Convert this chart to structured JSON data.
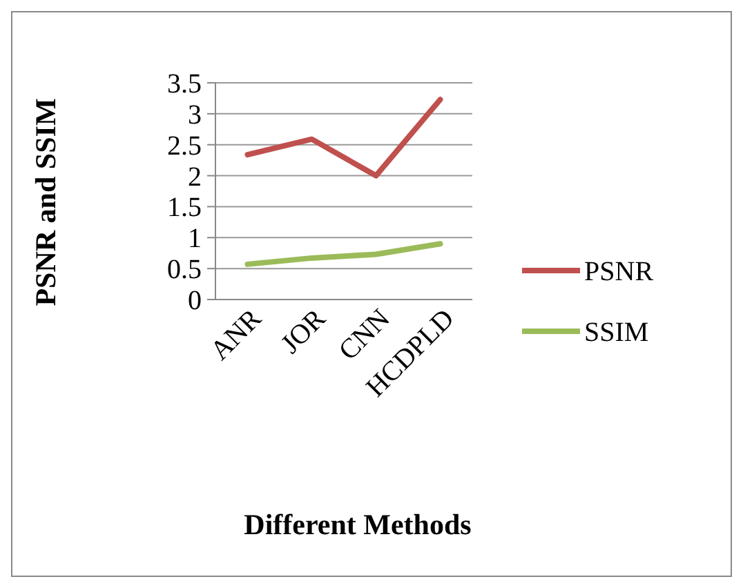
{
  "chart_data": {
    "type": "line",
    "xlabel": "Different Methods",
    "ylabel": "PSNR and SSIM",
    "categories": [
      "ANR",
      "JOR",
      "CNN",
      "HCDPLD"
    ],
    "series": [
      {
        "name": "PSNR",
        "color": "#c0504d",
        "values": [
          2.34,
          2.59,
          2.0,
          3.23
        ]
      },
      {
        "name": "SSIM",
        "color": "#9bbb59",
        "values": [
          0.57,
          0.67,
          0.73,
          0.9
        ]
      }
    ],
    "ylim": [
      0,
      3.5
    ],
    "yticks": [
      0,
      0.5,
      1,
      1.5,
      2,
      2.5,
      3,
      3.5
    ],
    "grid": "y",
    "legend": "right",
    "marker": "none"
  }
}
